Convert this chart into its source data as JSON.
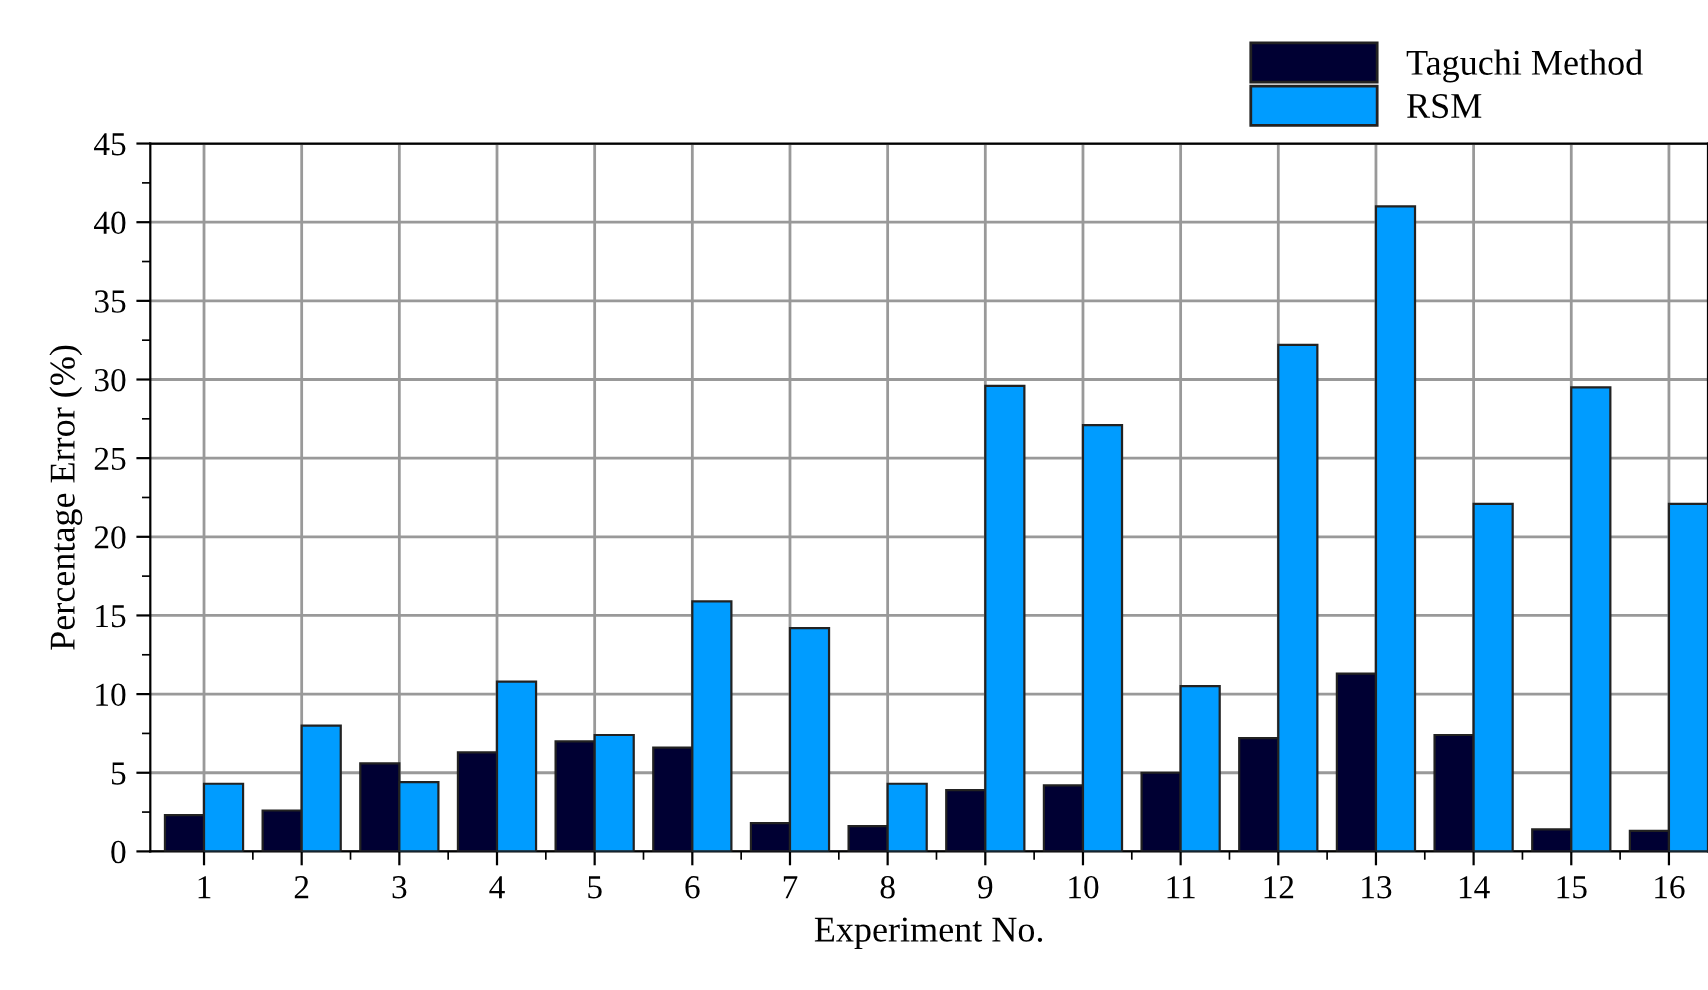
{
  "chart_data": {
    "type": "bar",
    "xlabel": "Experiment No.",
    "ylabel": "Percentage Error (%)",
    "categories": [
      "1",
      "2",
      "3",
      "4",
      "5",
      "6",
      "7",
      "8",
      "9",
      "10",
      "11",
      "12",
      "13",
      "14",
      "15",
      "16"
    ],
    "series": [
      {
        "name": "Taguchi Method",
        "color": "#000033",
        "values": [
          2.3,
          2.6,
          5.6,
          6.3,
          7.0,
          6.6,
          1.8,
          1.6,
          3.9,
          4.2,
          5.0,
          7.2,
          11.3,
          7.4,
          1.4,
          1.3
        ]
      },
      {
        "name": "RSM",
        "color": "#009cff",
        "values": [
          4.3,
          8.0,
          4.4,
          10.8,
          7.4,
          15.9,
          14.2,
          4.3,
          29.6,
          27.1,
          10.5,
          32.2,
          41.0,
          22.1,
          29.5,
          22.1
        ]
      }
    ],
    "ylim": [
      0,
      45
    ],
    "yticks": [
      0,
      5,
      10,
      15,
      20,
      25,
      30,
      35,
      40,
      45
    ],
    "grid": true,
    "legend": "top right"
  }
}
